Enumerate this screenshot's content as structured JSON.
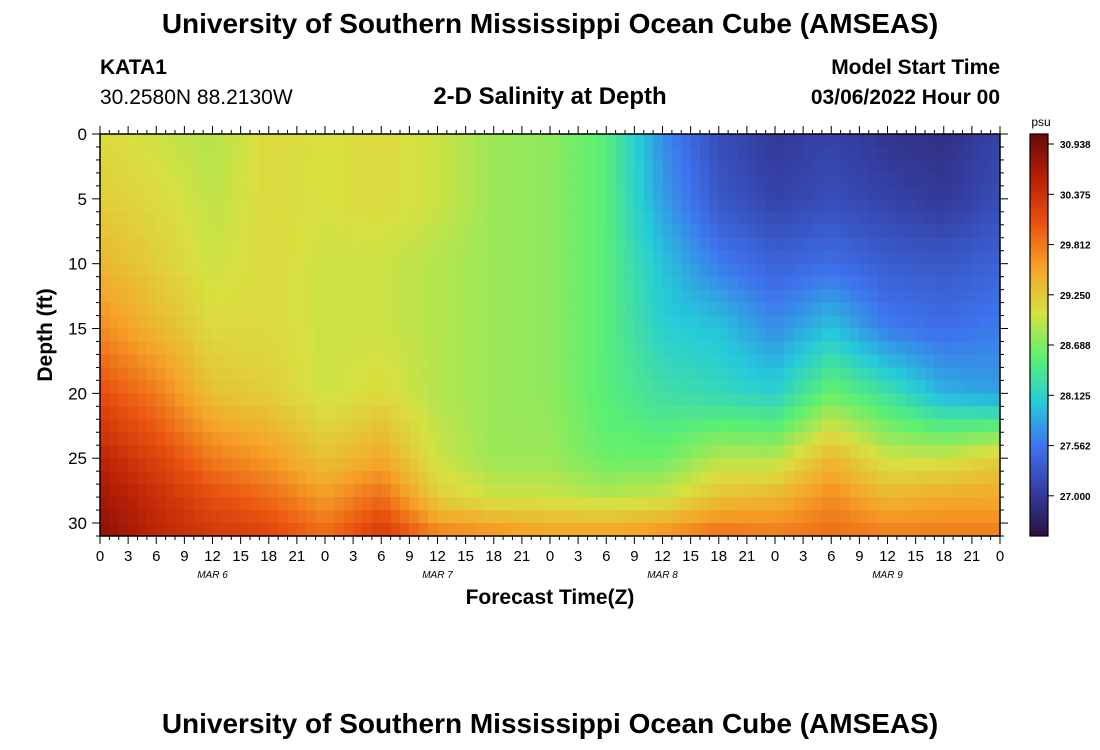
{
  "header": {
    "title": "University of Southern Mississippi Ocean Cube (AMSEAS)",
    "station": "KATA1",
    "coords": "30.2580N  88.2130W",
    "plot_title": "2-D Salinity at Depth",
    "model_start_label": "Model Start Time",
    "model_start_value": "03/06/2022 Hour 00"
  },
  "footer": {
    "title": "University of Southern Mississippi Ocean Cube (AMSEAS)"
  },
  "chart_data": {
    "type": "heatmap",
    "title": "2-D Salinity at Depth",
    "xlabel": "Forecast Time(Z)",
    "ylabel": "Depth (ft)",
    "x_tick_labels": [
      "0",
      "3",
      "6",
      "9",
      "12",
      "15",
      "18",
      "21",
      "0",
      "3",
      "6",
      "9",
      "12",
      "15",
      "18",
      "21",
      "0",
      "3",
      "6",
      "9",
      "12",
      "15",
      "18",
      "21",
      "0",
      "3",
      "6",
      "9",
      "12",
      "15",
      "18",
      "21",
      "0"
    ],
    "x_range_hours": [
      0,
      96
    ],
    "date_labels": [
      {
        "label": "MAR 6",
        "hour": 12
      },
      {
        "label": "MAR 7",
        "hour": 36
      },
      {
        "label": "MAR 8",
        "hour": 60
      },
      {
        "label": "MAR 9",
        "hour": 84
      }
    ],
    "y_ticks": [
      0,
      5,
      10,
      15,
      20,
      25,
      30
    ],
    "y_tick_labels": [
      "0",
      "5",
      "10",
      "15",
      "20",
      "25",
      "30"
    ],
    "y_range": [
      0,
      31
    ],
    "y_inverted": true,
    "colorbar": {
      "unit": "psu",
      "min": 26.55,
      "max": 31.05,
      "tick_values": [
        30.938,
        30.375,
        29.812,
        29.25,
        28.688,
        28.125,
        27.562,
        27.0
      ],
      "tick_labels": [
        "30.938",
        "30.375",
        "29.812",
        "29.250",
        "28.688",
        "28.125",
        "27.562",
        "27.000"
      ],
      "colors": [
        "#2a1040",
        "#343ea0",
        "#3e73ee",
        "#25ccd8",
        "#5ef070",
        "#d8e040",
        "#f5a428",
        "#ea5210",
        "#b82006",
        "#6a0808"
      ]
    },
    "grid": false,
    "profile_hours": [
      0,
      6,
      12,
      18,
      24,
      30,
      36,
      42,
      48,
      54,
      60,
      66,
      72,
      78,
      84,
      90,
      96
    ],
    "profile_depths": [
      0,
      5,
      10,
      15,
      20,
      25,
      28,
      31
    ],
    "salinity_profiles": [
      [
        29.1,
        29.2,
        29.4,
        29.7,
        30.1,
        30.5,
        30.7,
        30.85
      ],
      [
        29.0,
        29.1,
        29.2,
        29.4,
        29.8,
        30.2,
        30.4,
        30.5
      ],
      [
        28.9,
        28.95,
        29.0,
        29.1,
        29.3,
        29.8,
        30.1,
        30.3
      ],
      [
        29.1,
        29.1,
        29.1,
        29.1,
        29.2,
        29.6,
        29.9,
        30.2
      ],
      [
        29.05,
        29.05,
        29.0,
        29.0,
        29.0,
        29.3,
        29.6,
        29.9
      ],
      [
        29.1,
        29.1,
        29.0,
        29.0,
        29.1,
        29.5,
        29.9,
        30.3
      ],
      [
        29.0,
        29.0,
        28.9,
        28.9,
        28.9,
        29.0,
        29.2,
        29.8
      ],
      [
        28.8,
        28.8,
        28.8,
        28.8,
        28.8,
        28.8,
        29.0,
        29.7
      ],
      [
        28.75,
        28.75,
        28.75,
        28.75,
        28.75,
        28.8,
        29.0,
        29.6
      ],
      [
        28.5,
        28.5,
        28.5,
        28.5,
        28.5,
        28.6,
        28.9,
        29.6
      ],
      [
        27.7,
        27.8,
        28.0,
        28.1,
        28.3,
        28.6,
        29.0,
        29.7
      ],
      [
        27.2,
        27.3,
        27.6,
        28.0,
        28.2,
        28.9,
        29.3,
        29.9
      ],
      [
        27.0,
        27.1,
        27.4,
        27.7,
        28.1,
        28.9,
        29.4,
        29.8
      ],
      [
        27.1,
        27.2,
        27.5,
        28.0,
        28.6,
        29.4,
        29.7,
        29.9
      ],
      [
        26.95,
        27.1,
        27.35,
        27.6,
        28.3,
        29.0,
        29.4,
        29.8
      ],
      [
        26.9,
        27.0,
        27.3,
        27.5,
        27.9,
        29.0,
        29.5,
        29.8
      ],
      [
        27.1,
        27.2,
        27.4,
        27.6,
        27.8,
        29.2,
        29.5,
        29.8
      ]
    ]
  }
}
